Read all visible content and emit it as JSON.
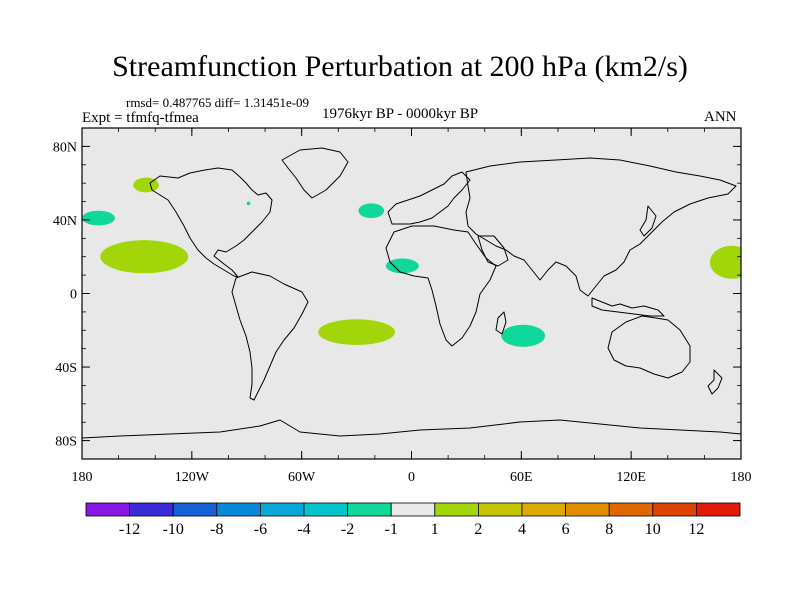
{
  "title": "Streamfunction Perturbation at 200 hPa (km2/s)",
  "stats": "rmsd= 0.487765  diff= 1.31451e-09",
  "expt": "Expt = tfmfq-tfmea",
  "period": "1976kyr BP - 0000kyr BP",
  "season": "ANN",
  "map": {
    "lon_range": [
      -180,
      180
    ],
    "lat_range": [
      -90,
      90
    ],
    "background_color": "#e8e8e8",
    "lat_ticks": [
      {
        "lat": 80,
        "label": "80N"
      },
      {
        "lat": 40,
        "label": "40N"
      },
      {
        "lat": 0,
        "label": "0"
      },
      {
        "lat": -40,
        "label": "40S"
      },
      {
        "lat": -80,
        "label": "80S"
      }
    ],
    "lon_ticks": [
      {
        "lon": -180,
        "label": "180"
      },
      {
        "lon": -120,
        "label": "120W"
      },
      {
        "lon": -60,
        "label": "60W"
      },
      {
        "lon": 0,
        "label": "0"
      },
      {
        "lon": 60,
        "label": "60E"
      },
      {
        "lon": 120,
        "label": "120E"
      },
      {
        "lon": 180,
        "label": "180"
      }
    ],
    "anomalies": [
      {
        "lon": -146,
        "lat": 20,
        "rlon": 24,
        "rlat": 9,
        "color": "#a2d608"
      },
      {
        "lon": 175,
        "lat": 17,
        "rlon": 12,
        "rlat": 9,
        "color": "#a2d608"
      },
      {
        "lon": -145,
        "lat": 59,
        "rlon": 7,
        "rlat": 4,
        "color": "#a2d608"
      },
      {
        "lon": -171,
        "lat": 41,
        "rlon": 9,
        "rlat": 4,
        "color": "#10d89a"
      },
      {
        "lon": -22,
        "lat": 45,
        "rlon": 7,
        "rlat": 4,
        "color": "#10d89a"
      },
      {
        "lon": -5,
        "lat": 15,
        "rlon": 9,
        "rlat": 4,
        "color": "#10d89a"
      },
      {
        "lon": -30,
        "lat": -21,
        "rlon": 21,
        "rlat": 7,
        "color": "#a2d608"
      },
      {
        "lon": 61,
        "lat": -23,
        "rlon": 12,
        "rlat": 6,
        "color": "#10d89a"
      },
      {
        "lon": -89,
        "lat": 49,
        "rlon": 1,
        "rlat": 1,
        "color": "#10d89a"
      }
    ]
  },
  "colorbar": {
    "colors": [
      "#8a16e6",
      "#3a2ad8",
      "#1460d6",
      "#0a88d8",
      "#08a8d8",
      "#06c4cc",
      "#10d89a",
      "#e8e8e8",
      "#a2d608",
      "#c6c600",
      "#dcaa00",
      "#e28c00",
      "#e06800",
      "#dc4400",
      "#e41a08"
    ],
    "labels": [
      "-12",
      "-10",
      "-8",
      "-6",
      "-4",
      "-2",
      "-1",
      "1",
      "2",
      "4",
      "6",
      "8",
      "10",
      "12"
    ]
  }
}
